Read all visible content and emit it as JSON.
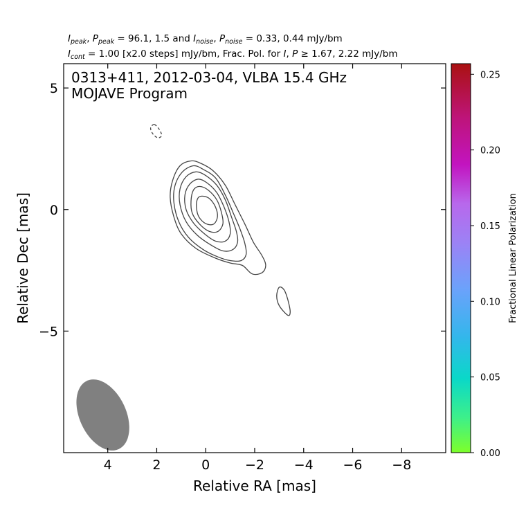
{
  "header": {
    "line1": {
      "i_sym": "I",
      "i_sub": "peak",
      "sep1": ", ",
      "p_sym": "P",
      "p_sub": "peak",
      "mid": " = 96.1, 1.5 and ",
      "in_sym": "I",
      "in_sub": "noise",
      "sep2": ", ",
      "pn_sym": "P",
      "pn_sub": "noise",
      "end": " = 0.33, 0.44 mJy/bm"
    },
    "line2": {
      "ic_sym": "I",
      "ic_sub": "cont",
      "mid": " = 1.00 [x2.0 steps] mJy/bm, Frac. Pol. for ",
      "i2_sym": "I",
      "sep": ", ",
      "p2_sym": "P",
      "end": " ≥ 1.67, 2.22 mJy/bm"
    }
  },
  "chart_data": {
    "type": "contour",
    "annotation_lines": [
      "0313+411, 2012-03-04, VLBA 15.4 GHz",
      "MOJAVE Program"
    ],
    "xlabel": "Relative RA [mas]",
    "ylabel": "Relative Dec [mas]",
    "xlim": [
      5.8,
      -9.8
    ],
    "ylim": [
      -10.0,
      6.0
    ],
    "x_ticks": [
      4,
      2,
      0,
      -2,
      -4,
      -6,
      -8
    ],
    "x_tick_labels": [
      "4",
      "2",
      "0",
      "−2",
      "−4",
      "−6",
      "−8"
    ],
    "y_ticks": [
      5,
      0,
      -5
    ],
    "y_tick_labels": [
      "5",
      "0",
      "−5"
    ],
    "contour_color": "#444444",
    "contours": [
      {
        "level": "negative",
        "style": "dashed",
        "points": [
          [
            2.1,
            3.5
          ],
          [
            1.9,
            3.3
          ],
          [
            1.8,
            3.05
          ],
          [
            1.95,
            2.95
          ],
          [
            2.15,
            3.1
          ],
          [
            2.25,
            3.35
          ]
        ]
      },
      {
        "level": 1,
        "points": [
          [
            0.6,
            2.0
          ],
          [
            0.2,
            1.9
          ],
          [
            -0.3,
            1.6
          ],
          [
            -0.8,
            1.0
          ],
          [
            -1.2,
            0.2
          ],
          [
            -1.6,
            -0.6
          ],
          [
            -1.95,
            -1.35
          ],
          [
            -2.3,
            -1.9
          ],
          [
            -2.45,
            -2.3
          ],
          [
            -2.3,
            -2.6
          ],
          [
            -1.9,
            -2.65
          ],
          [
            -1.5,
            -2.3
          ],
          [
            -1.0,
            -2.2
          ],
          [
            -0.4,
            -2.0
          ],
          [
            0.4,
            -1.6
          ],
          [
            1.0,
            -1.0
          ],
          [
            1.3,
            -0.3
          ],
          [
            1.45,
            0.5
          ],
          [
            1.35,
            1.2
          ],
          [
            1.05,
            1.8
          ]
        ]
      },
      {
        "level": 2,
        "points": [
          [
            0.5,
            1.8
          ],
          [
            0.1,
            1.65
          ],
          [
            -0.4,
            1.3
          ],
          [
            -0.8,
            0.6
          ],
          [
            -1.15,
            -0.2
          ],
          [
            -1.4,
            -0.8
          ],
          [
            -1.6,
            -1.4
          ],
          [
            -1.65,
            -1.85
          ],
          [
            -1.45,
            -2.1
          ],
          [
            -1.0,
            -2.1
          ],
          [
            -0.5,
            -1.95
          ],
          [
            0.1,
            -1.65
          ],
          [
            0.7,
            -1.15
          ],
          [
            1.1,
            -0.5
          ],
          [
            1.3,
            0.3
          ],
          [
            1.25,
            1.0
          ],
          [
            0.95,
            1.55
          ]
        ]
      },
      {
        "level": 4,
        "points": [
          [
            0.4,
            1.55
          ],
          [
            0.0,
            1.4
          ],
          [
            -0.45,
            1.0
          ],
          [
            -0.8,
            0.4
          ],
          [
            -1.05,
            -0.3
          ],
          [
            -1.25,
            -0.9
          ],
          [
            -1.3,
            -1.35
          ],
          [
            -1.1,
            -1.65
          ],
          [
            -0.7,
            -1.7
          ],
          [
            -0.2,
            -1.45
          ],
          [
            0.35,
            -1.05
          ],
          [
            0.8,
            -0.5
          ],
          [
            1.05,
            0.2
          ],
          [
            1.05,
            0.85
          ],
          [
            0.8,
            1.35
          ]
        ]
      },
      {
        "level": 8,
        "points": [
          [
            0.3,
            1.25
          ],
          [
            -0.05,
            1.1
          ],
          [
            -0.45,
            0.7
          ],
          [
            -0.75,
            0.1
          ],
          [
            -0.95,
            -0.5
          ],
          [
            -1.0,
            -1.0
          ],
          [
            -0.8,
            -1.3
          ],
          [
            -0.4,
            -1.3
          ],
          [
            0.05,
            -1.0
          ],
          [
            0.5,
            -0.55
          ],
          [
            0.8,
            0.0
          ],
          [
            0.85,
            0.6
          ],
          [
            0.65,
            1.05
          ]
        ]
      },
      {
        "level": 16,
        "points": [
          [
            0.25,
            0.95
          ],
          [
            -0.1,
            0.8
          ],
          [
            -0.45,
            0.4
          ],
          [
            -0.65,
            -0.15
          ],
          [
            -0.7,
            -0.6
          ],
          [
            -0.5,
            -0.9
          ],
          [
            -0.15,
            -0.9
          ],
          [
            0.25,
            -0.6
          ],
          [
            0.55,
            -0.15
          ],
          [
            0.6,
            0.35
          ],
          [
            0.5,
            0.8
          ]
        ]
      },
      {
        "level": 32,
        "points": [
          [
            0.15,
            0.55
          ],
          [
            -0.15,
            0.45
          ],
          [
            -0.4,
            0.1
          ],
          [
            -0.48,
            -0.3
          ],
          [
            -0.32,
            -0.6
          ],
          [
            0.0,
            -0.58
          ],
          [
            0.28,
            -0.3
          ],
          [
            0.38,
            0.1
          ],
          [
            0.33,
            0.45
          ]
        ]
      },
      {
        "level": 1,
        "points": [
          [
            -3.0,
            -3.2
          ],
          [
            -3.2,
            -3.3
          ],
          [
            -3.35,
            -3.7
          ],
          [
            -3.45,
            -4.2
          ],
          [
            -3.35,
            -4.35
          ],
          [
            -3.0,
            -3.95
          ],
          [
            -2.9,
            -3.55
          ]
        ]
      }
    ],
    "beam": {
      "center": [
        4.2,
        -8.45
      ],
      "major_mas": 1.55,
      "minor_mas": 0.95,
      "pa_deg": -25,
      "color": "#808080"
    },
    "colorbar": {
      "label": "Fractional Linear Polarization",
      "range": [
        0.0,
        0.257
      ],
      "ticks": [
        0.0,
        0.05,
        0.1,
        0.15,
        0.2,
        0.25
      ],
      "tick_labels": [
        "0.00",
        "0.05",
        "0.10",
        "0.15",
        "0.20",
        "0.25"
      ],
      "colors": [
        [
          0,
          "#7dff2a"
        ],
        [
          0.09,
          "#3df08a"
        ],
        [
          0.19,
          "#0ad8c8"
        ],
        [
          0.3,
          "#34b6ec"
        ],
        [
          0.42,
          "#6ba2fb"
        ],
        [
          0.54,
          "#9c82f5"
        ],
        [
          0.64,
          "#b868ec"
        ],
        [
          0.74,
          "#c214c0"
        ],
        [
          0.86,
          "#be147a"
        ],
        [
          1.0,
          "#aa1111"
        ]
      ]
    }
  }
}
